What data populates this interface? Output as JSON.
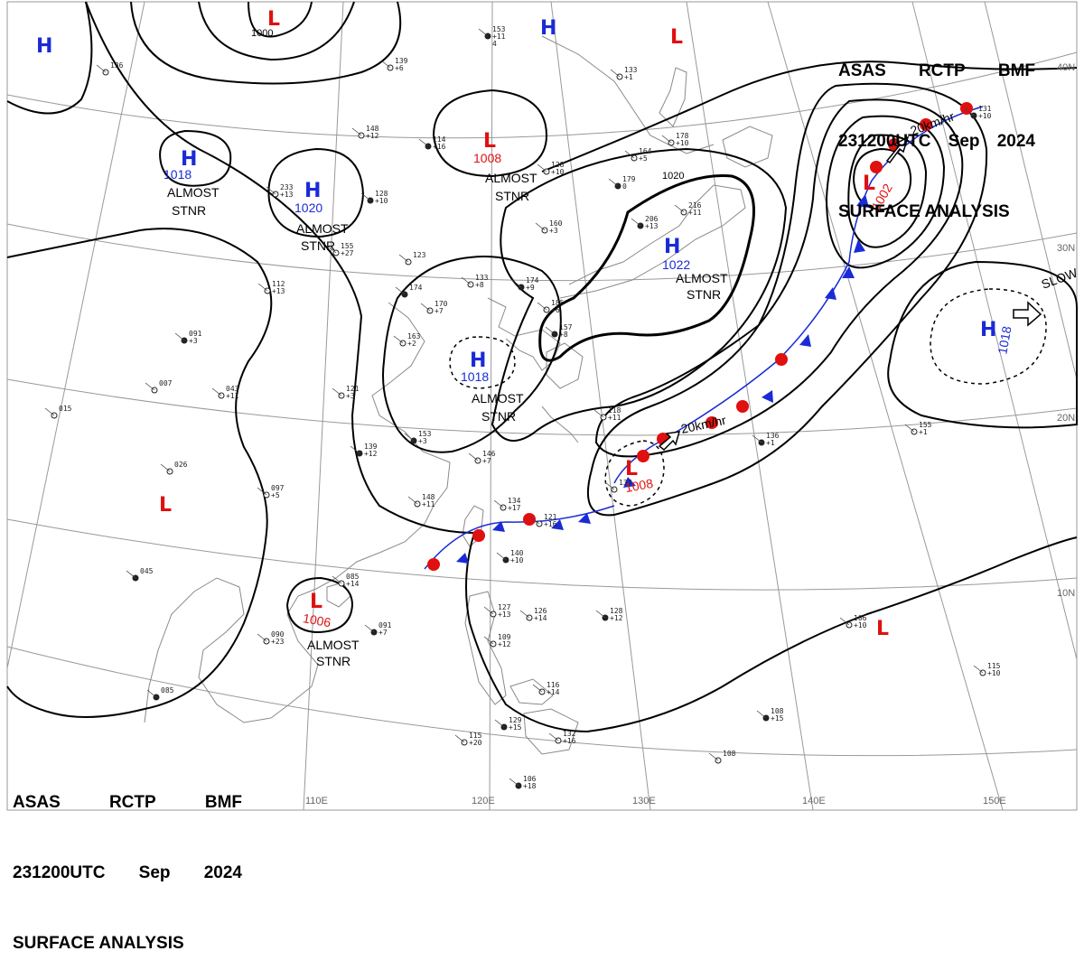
{
  "header_top": {
    "agency": "ASAS",
    "station": "RCTP",
    "office": "BMF",
    "time": "231200UTC",
    "month": "Sep",
    "year": "2024",
    "product": "SURFACE ANALYSIS"
  },
  "header_bottom": {
    "agency": "ASAS",
    "station": "RCTP",
    "office": "BMF",
    "time": "231200UTC",
    "month": "Sep",
    "year": "2024",
    "product": "SURFACE ANALYSIS"
  },
  "latitude_labels": [
    "40N",
    "30N",
    "20N",
    "10N"
  ],
  "longitude_labels": [
    "110E",
    "120E",
    "130E",
    "140E",
    "150E"
  ],
  "isobar_labels": [
    "1000",
    "1020"
  ],
  "pressure_systems": [
    {
      "id": "h-nw",
      "type": "H",
      "value": ""
    },
    {
      "id": "l-north",
      "type": "L",
      "value": "1000"
    },
    {
      "id": "h-north",
      "type": "H",
      "value": ""
    },
    {
      "id": "l-ne",
      "type": "L",
      "value": ""
    },
    {
      "id": "h-west",
      "type": "H",
      "value": "1018",
      "note": "ALMOST STNR"
    },
    {
      "id": "h-mongolia",
      "type": "H",
      "value": "1020",
      "note": "ALMOST STNR"
    },
    {
      "id": "l-china",
      "type": "L",
      "value": "1008",
      "note": "ALMOST STNR"
    },
    {
      "id": "h-japan",
      "type": "H",
      "value": "1022",
      "note": "ALMOST STNR"
    },
    {
      "id": "l-typhoon",
      "type": "L",
      "value": "1002"
    },
    {
      "id": "h-pacific",
      "type": "H",
      "value": "1018"
    },
    {
      "id": "h-east-china",
      "type": "H",
      "value": "1018",
      "note": "ALMOST STNR"
    },
    {
      "id": "l-taiwan",
      "type": "L",
      "value": "1008"
    },
    {
      "id": "l-south-china-sea",
      "type": "L",
      "value": "1006",
      "note": "ALMOST STNR"
    },
    {
      "id": "l-west",
      "type": "L",
      "value": ""
    },
    {
      "id": "l-southeast",
      "type": "L",
      "value": ""
    }
  ],
  "motion_labels": {
    "pacific_high": "SLOW",
    "taiwan_low": "20km/hr",
    "typhoon": "20km/hr"
  },
  "legend_colors": {
    "high": "#1a2bd6",
    "low": "#e01010",
    "warm_front": "#e01010",
    "cold_front": "#1a2bd6"
  },
  "stations": [
    {
      "id": "s1",
      "values": [
        "153",
        "+11",
        "4"
      ]
    },
    {
      "id": "s2",
      "values": [
        "139",
        "+6"
      ]
    },
    {
      "id": "s3",
      "values": [
        "148",
        "+12"
      ]
    },
    {
      "id": "s4",
      "values": [
        "114",
        "+16"
      ]
    },
    {
      "id": "s5",
      "values": [
        "128",
        "+10"
      ]
    },
    {
      "id": "s6",
      "values": [
        "233",
        "+13"
      ]
    },
    {
      "id": "s7",
      "values": [
        "128",
        "+10"
      ]
    },
    {
      "id": "s8",
      "values": [
        "155",
        "+27"
      ]
    },
    {
      "id": "s9",
      "values": [
        "123"
      ]
    },
    {
      "id": "s10",
      "values": [
        "174"
      ]
    },
    {
      "id": "s11",
      "values": [
        "170",
        "+7"
      ]
    },
    {
      "id": "s12",
      "values": [
        "133",
        "+8"
      ]
    },
    {
      "id": "s13",
      "values": [
        "174",
        "+9"
      ]
    },
    {
      "id": "s14",
      "values": [
        "185",
        "+6"
      ]
    },
    {
      "id": "s15",
      "values": [
        "160",
        "+3"
      ]
    },
    {
      "id": "s16",
      "values": [
        "206",
        "+13"
      ]
    },
    {
      "id": "s17",
      "values": [
        "216",
        "+11"
      ]
    },
    {
      "id": "s18",
      "values": [
        "164",
        "+5"
      ]
    },
    {
      "id": "s19",
      "values": [
        "179",
        "0"
      ]
    },
    {
      "id": "s20",
      "values": [
        "178",
        "+10"
      ]
    },
    {
      "id": "s21",
      "values": [
        "133",
        "+1"
      ]
    },
    {
      "id": "s22",
      "values": [
        "131",
        "+10"
      ]
    },
    {
      "id": "s23",
      "values": [
        "163",
        "+2"
      ]
    },
    {
      "id": "s24",
      "values": [
        "121",
        "+3"
      ]
    },
    {
      "id": "s25",
      "values": [
        "153",
        "+3"
      ]
    },
    {
      "id": "s26",
      "values": [
        "146",
        "+7"
      ]
    },
    {
      "id": "s27",
      "values": [
        "148",
        "+11"
      ]
    },
    {
      "id": "s28",
      "values": [
        "139",
        "+12"
      ]
    },
    {
      "id": "s29",
      "values": [
        "134",
        "+17"
      ]
    },
    {
      "id": "s30",
      "values": [
        "121",
        "+16"
      ]
    },
    {
      "id": "s31",
      "values": [
        "140",
        "+10"
      ]
    },
    {
      "id": "s32",
      "values": [
        "085",
        "+14"
      ]
    },
    {
      "id": "s33",
      "values": [
        "090",
        "+23"
      ]
    },
    {
      "id": "s34",
      "values": [
        "091",
        "+7"
      ]
    },
    {
      "id": "s35",
      "values": [
        "127",
        "+13"
      ]
    },
    {
      "id": "s36",
      "values": [
        "126",
        "+14"
      ]
    },
    {
      "id": "s37",
      "values": [
        "128",
        "+12"
      ]
    },
    {
      "id": "s38",
      "values": [
        "109",
        "+12"
      ]
    },
    {
      "id": "s39",
      "values": [
        "116",
        "+14"
      ]
    },
    {
      "id": "s40",
      "values": [
        "129",
        "+15"
      ]
    },
    {
      "id": "s41",
      "values": [
        "132",
        "+16"
      ]
    },
    {
      "id": "s42",
      "values": [
        "115",
        "+20"
      ]
    },
    {
      "id": "s43",
      "values": [
        "106",
        "+18"
      ]
    },
    {
      "id": "s44",
      "values": [
        "106",
        "+10"
      ]
    },
    {
      "id": "s45",
      "values": [
        "115",
        "+10"
      ]
    },
    {
      "id": "s46",
      "values": [
        "108",
        "+15"
      ]
    },
    {
      "id": "s47",
      "values": [
        "108"
      ]
    },
    {
      "id": "s48",
      "values": [
        "155",
        "+1"
      ]
    },
    {
      "id": "s49",
      "values": [
        "136",
        "+1"
      ]
    },
    {
      "id": "s50",
      "values": [
        "097",
        "+5"
      ]
    },
    {
      "id": "s51",
      "values": [
        "026"
      ]
    },
    {
      "id": "s52",
      "values": [
        "045"
      ]
    },
    {
      "id": "s53",
      "values": [
        "015"
      ]
    },
    {
      "id": "s54",
      "values": [
        "043",
        "+11"
      ]
    },
    {
      "id": "s55",
      "values": [
        "091",
        "+3"
      ]
    },
    {
      "id": "s56",
      "values": [
        "112",
        "+13"
      ]
    },
    {
      "id": "s57",
      "values": [
        "007"
      ]
    },
    {
      "id": "s58",
      "values": [
        "085"
      ]
    },
    {
      "id": "s59",
      "values": [
        "136"
      ]
    },
    {
      "id": "s60",
      "values": [
        "118",
        "+11"
      ]
    },
    {
      "id": "s61",
      "values": [
        "157",
        "+8"
      ]
    },
    {
      "id": "s62",
      "values": [
        "137"
      ]
    }
  ]
}
